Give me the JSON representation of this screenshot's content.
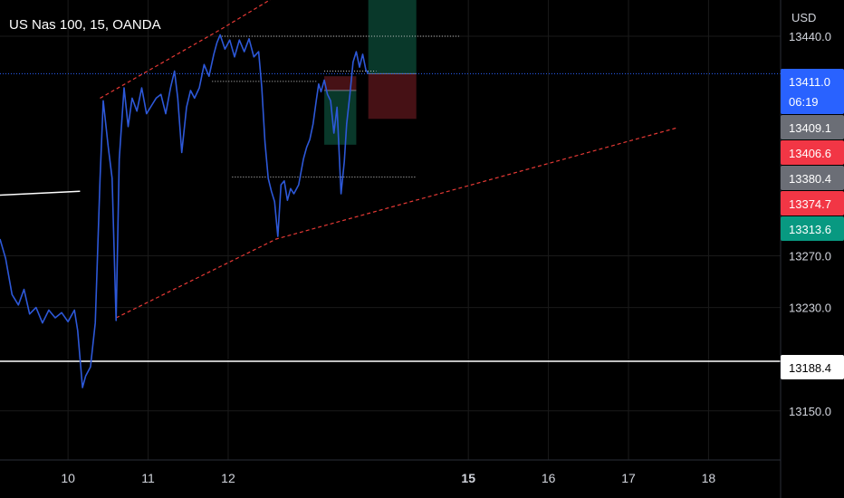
{
  "symbol": {
    "title": "US Nas 100, 15, OANDA",
    "currency": "USD"
  },
  "colors": {
    "background": "#000000",
    "grid": "#1a1a1a",
    "price_series": "#2d58d8",
    "current_price": "#2962ff",
    "trend_channel": "#e53935",
    "level_line": "#ffffff",
    "box_green": "#0a3b2c",
    "box_red": "#4a1216",
    "tag_grey": "#6b6e76",
    "tag_red": "#f23645",
    "tag_teal": "#089981",
    "tag_white": "#ffffff"
  },
  "chart_data": {
    "type": "line",
    "title": "US Nas 100, 15, OANDA",
    "xlabel": "",
    "ylabel": "",
    "grid": true,
    "x_axis": {
      "ticks": [
        "10",
        "11",
        "12",
        "15",
        "16",
        "17",
        "18"
      ],
      "range": [
        9.15,
        18.9
      ]
    },
    "y_axis": {
      "ticks": [
        13440.0,
        13270.0,
        13230.0,
        13150.0
      ],
      "range": [
        13112,
        13468
      ]
    },
    "series": [
      {
        "values": [
          [
            9.15,
            13283
          ],
          [
            9.22,
            13268
          ],
          [
            9.3,
            13240
          ],
          [
            9.38,
            13232
          ],
          [
            9.45,
            13244
          ],
          [
            9.52,
            13225
          ],
          [
            9.6,
            13230
          ],
          [
            9.68,
            13218
          ],
          [
            9.76,
            13228
          ],
          [
            9.84,
            13222
          ],
          [
            9.92,
            13226
          ],
          [
            10.0,
            13219
          ],
          [
            10.08,
            13228
          ],
          [
            10.12,
            13212
          ],
          [
            10.18,
            13168
          ],
          [
            10.22,
            13177
          ],
          [
            10.28,
            13184
          ],
          [
            10.34,
            13218
          ],
          [
            10.4,
            13330
          ],
          [
            10.44,
            13390
          ],
          [
            10.5,
            13355
          ],
          [
            10.55,
            13330
          ],
          [
            10.6,
            13220
          ],
          [
            10.64,
            13345
          ],
          [
            10.7,
            13400
          ],
          [
            10.75,
            13370
          ],
          [
            10.8,
            13392
          ],
          [
            10.86,
            13382
          ],
          [
            10.92,
            13400
          ],
          [
            10.98,
            13380
          ],
          [
            11.04,
            13386
          ],
          [
            11.1,
            13392
          ],
          [
            11.16,
            13395
          ],
          [
            11.22,
            13380
          ],
          [
            11.28,
            13400
          ],
          [
            11.33,
            13413
          ],
          [
            11.37,
            13392
          ],
          [
            11.42,
            13350
          ],
          [
            11.48,
            13385
          ],
          [
            11.53,
            13398
          ],
          [
            11.58,
            13392
          ],
          [
            11.64,
            13400
          ],
          [
            11.7,
            13418
          ],
          [
            11.76,
            13409
          ],
          [
            11.82,
            13426
          ],
          [
            11.86,
            13435
          ],
          [
            11.9,
            13441
          ],
          [
            11.96,
            13430
          ],
          [
            12.02,
            13437
          ],
          [
            12.08,
            13424
          ],
          [
            12.14,
            13437
          ],
          [
            12.2,
            13428
          ],
          [
            12.26,
            13438
          ],
          [
            12.32,
            13424
          ],
          [
            12.38,
            13428
          ],
          [
            12.42,
            13400
          ],
          [
            12.46,
            13358
          ],
          [
            12.5,
            13330
          ],
          [
            12.54,
            13320
          ],
          [
            12.58,
            13312
          ],
          [
            12.62,
            13285
          ],
          [
            12.66,
            13325
          ],
          [
            12.7,
            13328
          ],
          [
            12.74,
            13313
          ],
          [
            12.78,
            13322
          ],
          [
            12.82,
            13318
          ],
          [
            12.88,
            13325
          ],
          [
            12.94,
            13345
          ],
          [
            12.98,
            13354
          ],
          [
            13.02,
            13360
          ],
          [
            13.06,
            13372
          ],
          [
            13.1,
            13390
          ],
          [
            13.13,
            13403
          ],
          [
            13.16,
            13397
          ],
          [
            13.2,
            13406
          ],
          [
            13.24,
            13395
          ],
          [
            13.28,
            13390
          ],
          [
            13.32,
            13365
          ],
          [
            13.36,
            13385
          ],
          [
            13.41,
            13318
          ],
          [
            13.45,
            13343
          ],
          [
            13.48,
            13372
          ],
          [
            13.52,
            13395
          ],
          [
            13.56,
            13420
          ],
          [
            13.6,
            13428
          ],
          [
            13.64,
            13416
          ],
          [
            13.68,
            13426
          ],
          [
            13.72,
            13414
          ],
          [
            13.75,
            13411
          ]
        ]
      }
    ],
    "trend_channel": {
      "upper": [
        [
          10.4,
          13392
        ],
        [
          11.9,
          13445
        ],
        [
          12.6,
          13471
        ]
      ],
      "lower": [
        [
          10.6,
          13222
        ],
        [
          12.6,
          13283
        ],
        [
          17.6,
          13369
        ]
      ]
    },
    "horizontal_levels": [
      13188.4,
      13440.0
    ],
    "position_boxes": [
      {
        "kind": "long",
        "from": 13.2,
        "to": 13.6,
        "entry": 13398,
        "target": 13409,
        "stop": 13356
      },
      {
        "kind": "short",
        "from": 13.75,
        "to": 14.35,
        "entry": 13411,
        "target": 13470,
        "stop": 13376
      }
    ],
    "price_tags": [
      {
        "value": "13411.0",
        "sub": "06:19",
        "style": "current"
      },
      {
        "value": "13409.1",
        "style": "grey"
      },
      {
        "value": "13406.6",
        "style": "red"
      },
      {
        "value": "13380.4",
        "style": "grey"
      },
      {
        "value": "13374.7",
        "style": "red"
      },
      {
        "value": "13313.6",
        "style": "teal"
      },
      {
        "value": "13188.4",
        "style": "white"
      }
    ]
  }
}
